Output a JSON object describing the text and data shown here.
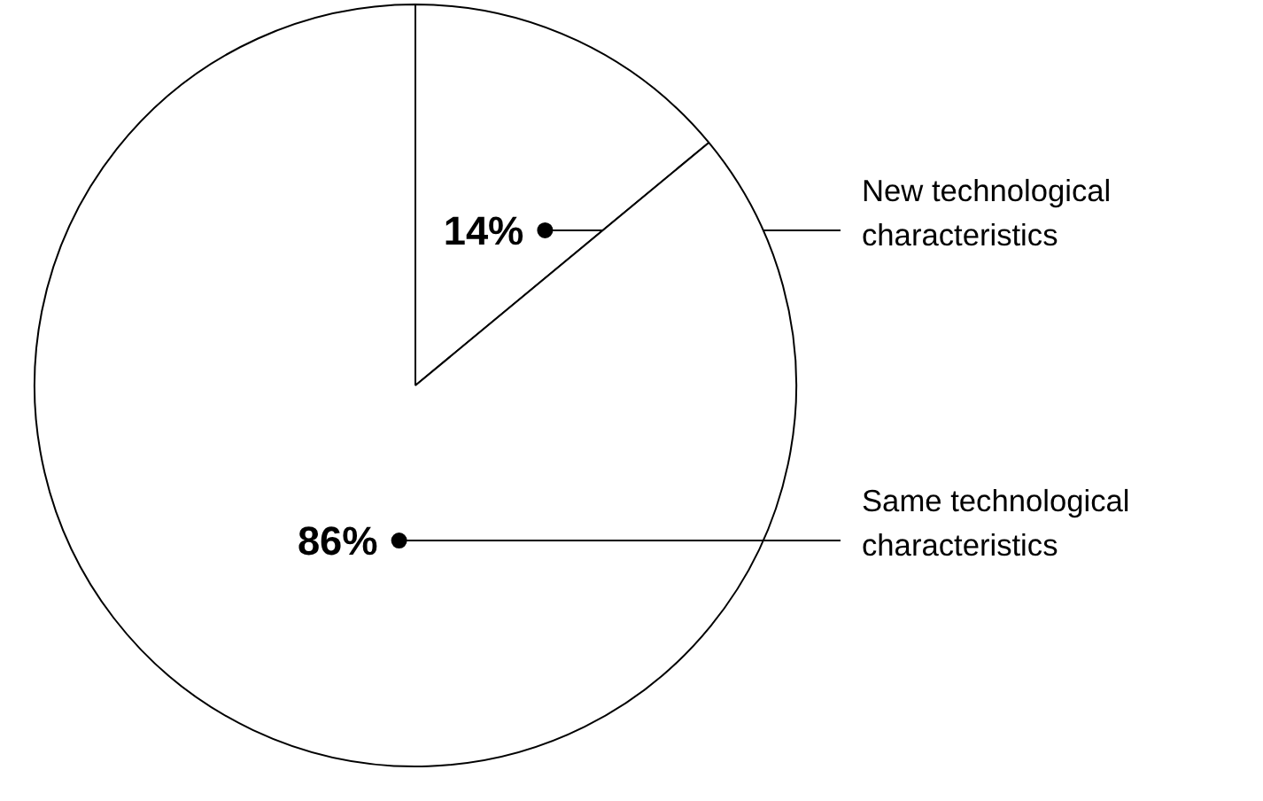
{
  "chart_data": {
    "type": "pie",
    "categories": [
      "New technological characteristics",
      "Same technological characteristics"
    ],
    "values": [
      14,
      86
    ],
    "colors": [
      "#ffffff",
      "#ffffff"
    ],
    "value_labels": [
      "14%",
      "86%"
    ]
  }
}
